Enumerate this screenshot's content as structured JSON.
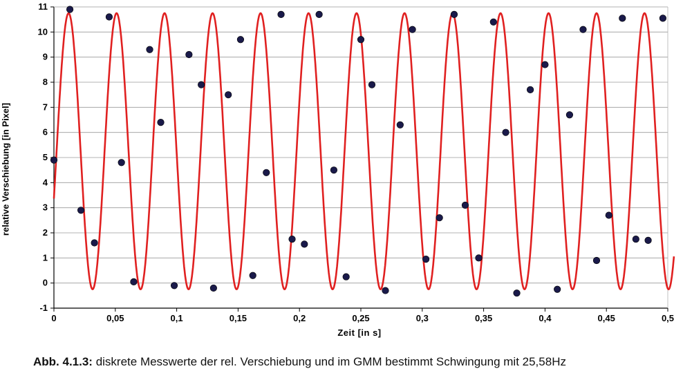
{
  "chart_data": {
    "type": "scatter",
    "xlabel": "Zeit [in s]",
    "ylabel": "relative Verschiebung [in Pixel]",
    "xlim": [
      0,
      0.5
    ],
    "ylim": [
      -1,
      11
    ],
    "xticks": [
      "0",
      "0,05",
      "0,1",
      "0,15",
      "0,2",
      "0,25",
      "0,3",
      "0,35",
      "0,4",
      "0,45",
      "0,5"
    ],
    "yticks": [
      "-1",
      "0",
      "1",
      "2",
      "3",
      "4",
      "5",
      "6",
      "7",
      "8",
      "9",
      "10",
      "11"
    ],
    "grid": "horizontal",
    "series": [
      {
        "kind": "points",
        "color": "#1a1a4a",
        "x": [
          0.0,
          0.013,
          0.022,
          0.033,
          0.045,
          0.055,
          0.065,
          0.078,
          0.087,
          0.098,
          0.11,
          0.12,
          0.13,
          0.142,
          0.152,
          0.162,
          0.173,
          0.185,
          0.194,
          0.204,
          0.216,
          0.228,
          0.238,
          0.25,
          0.259,
          0.27,
          0.282,
          0.292,
          0.303,
          0.314,
          0.326,
          0.335,
          0.346,
          0.358,
          0.368,
          0.377,
          0.388,
          0.4,
          0.41,
          0.42,
          0.431,
          0.442,
          0.452,
          0.463,
          0.474,
          0.484,
          0.496
        ],
        "y": [
          4.9,
          10.9,
          2.9,
          1.6,
          10.6,
          4.8,
          0.05,
          9.3,
          6.4,
          -0.1,
          9.1,
          7.9,
          -0.2,
          7.5,
          9.7,
          0.3,
          4.4,
          10.7,
          1.75,
          1.55,
          10.7,
          4.5,
          0.25,
          9.7,
          7.9,
          -0.3,
          6.3,
          10.1,
          0.95,
          2.6,
          10.7,
          3.1,
          1.0,
          10.4,
          6.0,
          -0.4,
          7.7,
          8.7,
          -0.25,
          6.7,
          10.1,
          0.9,
          2.7,
          10.55,
          1.75,
          1.7,
          10.55
        ]
      },
      {
        "kind": "fit-curve",
        "color": "#e02020",
        "frequency_hz": 25.58,
        "amplitude": 5.5,
        "offset": 5.25,
        "phase": -0.35,
        "x_range": [
          0,
          0.505
        ]
      }
    ]
  },
  "caption": {
    "prefix": "Abb. 4.1.3:",
    "text": " diskrete Messwerte der rel. Verschiebung und im GMM bestimmt Schwingung mit 25,58Hz"
  }
}
